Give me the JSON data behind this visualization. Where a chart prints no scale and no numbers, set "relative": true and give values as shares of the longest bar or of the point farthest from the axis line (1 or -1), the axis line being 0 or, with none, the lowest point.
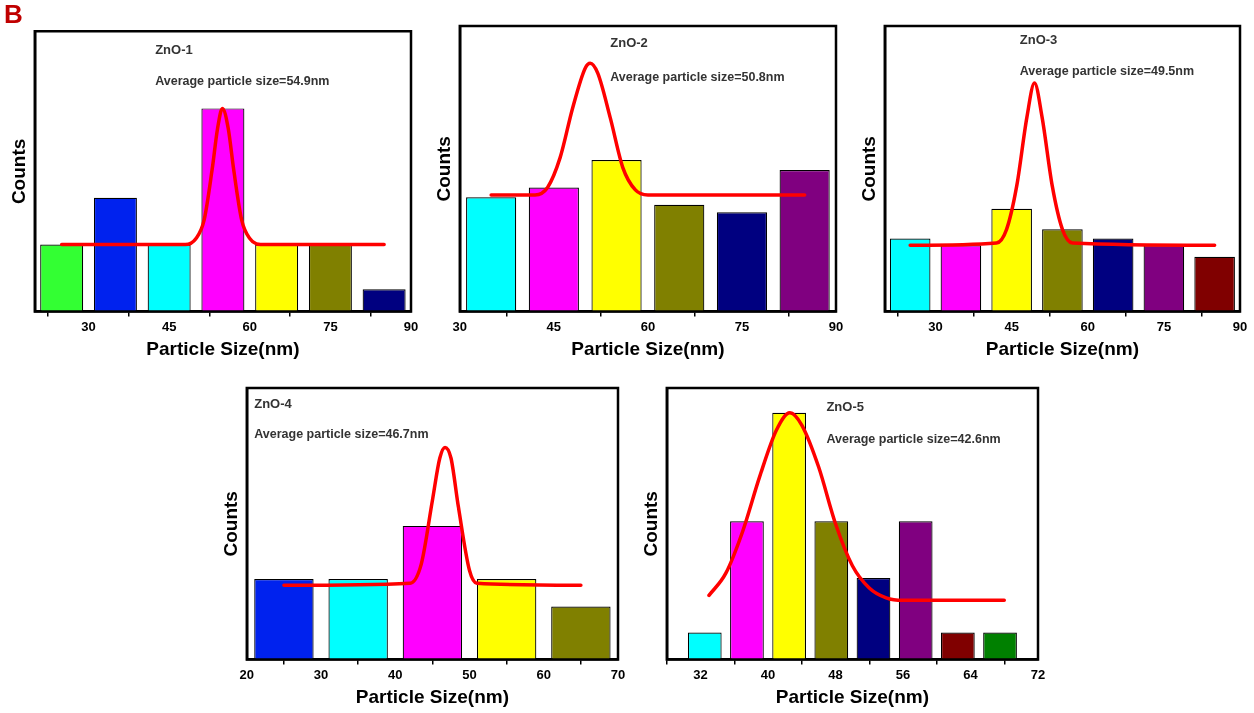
{
  "chart_data": [
    {
      "type": "bar",
      "title": "B",
      "xlabel": "Particle Size(nm)",
      "ylabel": "Counts",
      "relative": true,
      "xlim": [
        20,
        90
      ],
      "xticks": [
        30,
        45,
        60,
        75,
        90
      ],
      "legend": false,
      "grid": false,
      "annotations": [
        "ZnO-1",
        "Average particle size=54.9nm"
      ],
      "series": [
        {
          "x": [
            25,
            35,
            45,
            55,
            65,
            75,
            85
          ],
          "values": [
            0.33,
            0.56,
            0.33,
            1,
            0.33,
            0.33,
            0.11
          ],
          "colors": [
            "#33ff33",
            "#0022ee",
            "#00ffff",
            "#ff00ff",
            "#ffff00",
            "#808000",
            "#000080"
          ]
        },
        {
          "type": "line",
          "color": "#ff0000",
          "x": [
            25,
            48,
            50,
            51.5,
            53,
            54,
            54.9,
            56,
            57,
            58.5,
            60,
            62,
            85
          ],
          "values": [
            0.33,
            0.33,
            0.36,
            0.45,
            0.7,
            0.9,
            1,
            0.9,
            0.7,
            0.45,
            0.36,
            0.33,
            0.33
          ]
        }
      ]
    },
    {
      "type": "bar",
      "xlabel": "Particle Size(nm)",
      "ylabel": "Counts",
      "relative": true,
      "xlim": [
        30,
        90
      ],
      "xticks": [
        30,
        45,
        60,
        75,
        90
      ],
      "legend": false,
      "grid": false,
      "annotations": [
        "ZnO-2",
        "Average particle size=50.8nm"
      ],
      "series": [
        {
          "x": [
            35,
            45,
            55,
            65,
            75,
            85
          ],
          "values": [
            0.46,
            0.5,
            0.61,
            0.43,
            0.4,
            0.57
          ],
          "colors": [
            "#00ffff",
            "#ff00ff",
            "#ffff00",
            "#808000",
            "#000080",
            "#800080"
          ]
        },
        {
          "type": "line",
          "color": "#ff0000",
          "x": [
            35,
            42,
            44,
            46,
            48,
            50,
            50.8,
            52,
            54,
            56,
            58,
            60,
            85
          ],
          "values": [
            0.47,
            0.47,
            0.5,
            0.62,
            0.82,
            0.98,
            1,
            0.96,
            0.78,
            0.58,
            0.49,
            0.47,
            0.47
          ]
        }
      ]
    },
    {
      "type": "bar",
      "xlabel": "Particle Size(nm)",
      "ylabel": "Counts",
      "relative": true,
      "xlim": [
        20,
        90
      ],
      "xticks": [
        30,
        45,
        60,
        75,
        90
      ],
      "legend": false,
      "grid": false,
      "annotations": [
        "ZnO-3",
        "Average particle size=49.5nm"
      ],
      "series": [
        {
          "x": [
            25,
            35,
            45,
            55,
            65,
            75,
            85
          ],
          "values": [
            0.32,
            0.29,
            0.45,
            0.36,
            0.32,
            0.29,
            0.24
          ],
          "colors": [
            "#00ffff",
            "#ff00ff",
            "#ffff00",
            "#808000",
            "#000080",
            "#800080",
            "#800000"
          ]
        },
        {
          "type": "line",
          "color": "#ff0000",
          "x": [
            25,
            42,
            44,
            46,
            48,
            49.5,
            51,
            53,
            55,
            57,
            85
          ],
          "values": [
            0.29,
            0.3,
            0.36,
            0.55,
            0.85,
            1,
            0.85,
            0.55,
            0.36,
            0.3,
            0.29
          ]
        }
      ]
    },
    {
      "type": "bar",
      "xlabel": "Particle Size(nm)",
      "ylabel": "Counts",
      "relative": true,
      "xlim": [
        20,
        70
      ],
      "xticks": [
        20,
        30,
        40,
        50,
        60,
        70
      ],
      "legend": false,
      "grid": false,
      "annotations": [
        "ZnO-4",
        "Average particle size=46.7nm"
      ],
      "series": [
        {
          "x": [
            25,
            35,
            45,
            55,
            65
          ],
          "values": [
            0.38,
            0.38,
            0.63,
            0.38,
            0.25
          ],
          "colors": [
            "#0022ee",
            "#00ffff",
            "#ff00ff",
            "#ffff00",
            "#808000"
          ]
        },
        {
          "type": "line",
          "color": "#ff0000",
          "x": [
            25,
            42,
            43.5,
            45,
            46,
            46.7,
            47.5,
            48.5,
            50,
            51,
            65
          ],
          "values": [
            0.35,
            0.36,
            0.45,
            0.75,
            0.95,
            1,
            0.95,
            0.72,
            0.42,
            0.36,
            0.35
          ]
        }
      ]
    },
    {
      "type": "bar",
      "xlabel": "Particle Size(nm)",
      "ylabel": "Counts",
      "relative": true,
      "xlim": [
        28,
        72
      ],
      "xticks": [
        32,
        40,
        48,
        56,
        64,
        72
      ],
      "legend": false,
      "grid": false,
      "annotations": [
        "ZnO-5",
        "Average particle size=42.6nm"
      ],
      "series": [
        {
          "x": [
            32.5,
            37.5,
            42.5,
            47.5,
            52.5,
            57.5,
            62.5,
            67.5
          ],
          "values": [
            0.11,
            0.56,
            1,
            0.56,
            0.33,
            0.56,
            0.11,
            0.11
          ],
          "colors": [
            "#00ffff",
            "#ff00ff",
            "#ffff00",
            "#808000",
            "#000080",
            "#800080",
            "#800000",
            "#008000"
          ]
        },
        {
          "type": "line",
          "color": "#ff0000",
          "x": [
            33,
            35,
            37,
            39,
            41,
            42.6,
            44,
            46,
            48,
            50,
            52,
            54,
            56,
            68
          ],
          "values": [
            0.26,
            0.35,
            0.52,
            0.74,
            0.93,
            1,
            0.95,
            0.78,
            0.55,
            0.38,
            0.29,
            0.25,
            0.24,
            0.24
          ]
        }
      ]
    }
  ]
}
